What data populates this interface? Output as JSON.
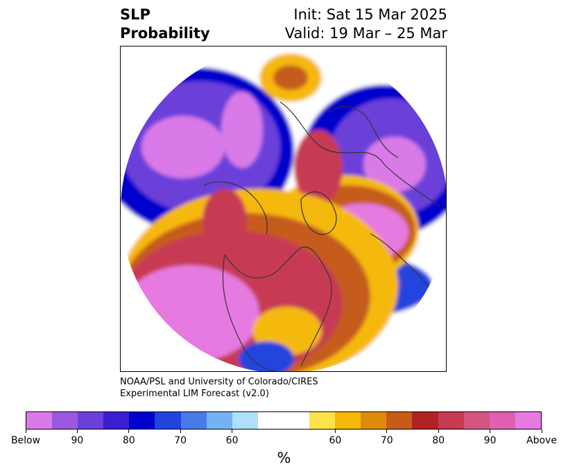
{
  "title": {
    "left_line1": "SLP",
    "left_line2": "Probability",
    "right_line1": "Init: Sat 15 Mar 2025",
    "right_line2": "Valid: 19 Mar – 25 Mar"
  },
  "credit": {
    "line1": "NOAA/PSL and University of Colorado/CIRES",
    "line2": "Experimental LIM Forecast (v2.0)"
  },
  "colorbar": {
    "colors": [
      "#d97ae8",
      "#9b59e0",
      "#6b3fd9",
      "#3a1fd0",
      "#0000cc",
      "#2244dd",
      "#4a7aea",
      "#74b2f4",
      "#aee0fb",
      "#ffffff",
      "#ffffff",
      "#ffe24a",
      "#f5b90a",
      "#e08a0c",
      "#c65b1a",
      "#b22222",
      "#c63a52",
      "#d45482",
      "#e060b0",
      "#e67ae0"
    ],
    "tick_labels": [
      "Below",
      "90",
      "80",
      "70",
      "60",
      "60",
      "70",
      "80",
      "90",
      "Above"
    ],
    "label": "%"
  },
  "map": {
    "colors": {
      "below_strong": "#d97ae8",
      "below_mid": "#6b3fd9",
      "below_weak": "#2244dd",
      "neutral": "#ffffff",
      "above_weak": "#f5b90a",
      "above_mid": "#c65b1a",
      "above_strong": "#c63a52",
      "above_peak": "#e67ae0",
      "coastline": "#333333"
    }
  }
}
